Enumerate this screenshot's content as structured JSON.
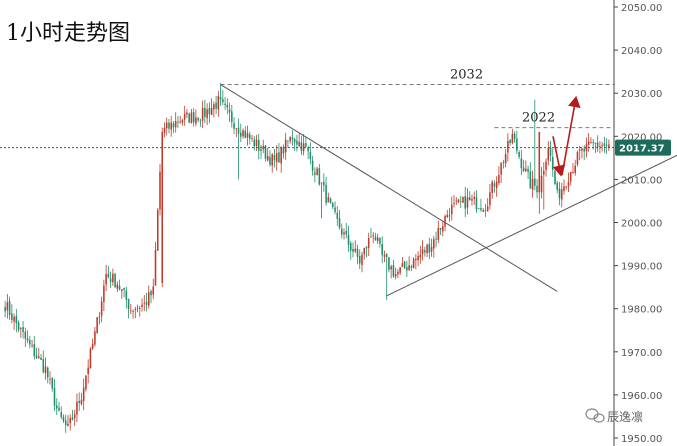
{
  "chart_data": {
    "type": "candlestick",
    "title": "1小时走势图",
    "y_axis": {
      "ticks": [
        "2050.00",
        "2040.00",
        "2030.00",
        "2020.00",
        "2010.00",
        "2000.00",
        "1990.00",
        "1980.00",
        "1970.00",
        "1960.00",
        "1950.00"
      ],
      "range": [
        1949,
        2053
      ],
      "position": "right"
    },
    "current_price": {
      "value": 2017.37,
      "label": "2017.37",
      "color": "#1d6b5a"
    },
    "levels": [
      {
        "value": 2032,
        "label": "2032"
      },
      {
        "value": 2022,
        "label": "2022"
      }
    ],
    "trendlines": [
      {
        "name": "descending-resistance",
        "from": [
          96,
          2032
        ],
        "to": [
          246,
          1984
        ]
      },
      {
        "name": "ascending-support",
        "from": [
          170,
          1983
        ],
        "to": [
          305,
          2017
        ]
      }
    ],
    "projection_arrows": [
      {
        "direction": "down",
        "from": 2020,
        "to": 2011
      },
      {
        "direction": "up",
        "from": 2011,
        "to": 2029
      }
    ],
    "candle_count": 270,
    "candles": [],
    "colors": {
      "up": "#c0392b",
      "down": "#1e8f6b",
      "arrow": "#b71c1c",
      "price_line": "#1d6b5a"
    }
  },
  "watermark": {
    "text": "辰逸凛"
  }
}
